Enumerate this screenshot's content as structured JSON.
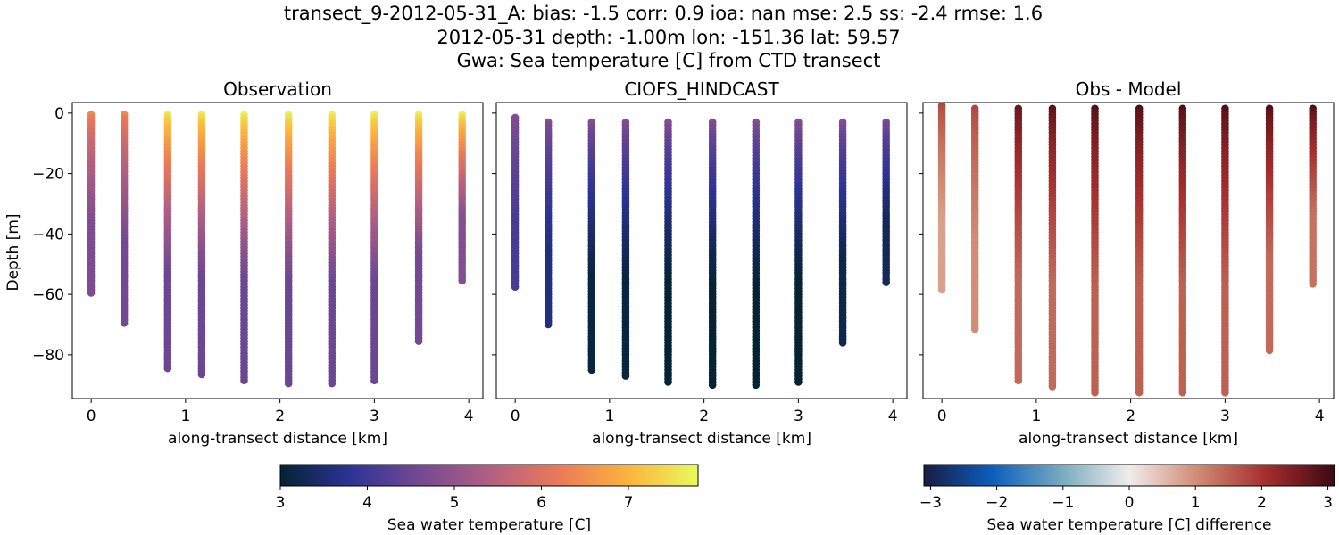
{
  "figure": {
    "title_lines": [
      "transect_9-2012-05-31_A: bias: -1.5  corr: 0.9  ioa: nan  mse: 2.5  ss: -2.4  rmse: 1.6",
      "2012-05-31 depth: -1.00m lon: -151.36 lat: 59.57",
      "Gwa: Sea temperature [C] from CTD transect"
    ]
  },
  "chart_data": [
    {
      "type": "scatter",
      "title": "Observation",
      "xlabel": "along-transect distance [km]",
      "ylabel": "Depth [m]",
      "xlim": [
        -0.2,
        4.15
      ],
      "ylim": [
        -94.5,
        3.5
      ],
      "xticks": [
        0,
        1,
        2,
        3,
        4
      ],
      "yticks": [
        0,
        -20,
        -40,
        -60,
        -80
      ],
      "colormap": "thermal",
      "color_range": [
        3,
        7.8
      ],
      "stations": [
        {
          "x": 0.0,
          "top": -0.5,
          "bottom": -60,
          "surface_value": 6.4,
          "deep_value": 4.7
        },
        {
          "x": 0.35,
          "top": -0.5,
          "bottom": -70,
          "surface_value": 6.4,
          "deep_value": 4.6
        },
        {
          "x": 0.81,
          "top": -0.5,
          "bottom": -85,
          "surface_value": 7.6,
          "deep_value": 4.5
        },
        {
          "x": 1.17,
          "top": -0.5,
          "bottom": -87,
          "surface_value": 7.6,
          "deep_value": 4.5
        },
        {
          "x": 1.62,
          "top": -0.5,
          "bottom": -89,
          "surface_value": 7.7,
          "deep_value": 4.5
        },
        {
          "x": 2.09,
          "top": -0.5,
          "bottom": -90,
          "surface_value": 7.7,
          "deep_value": 4.5
        },
        {
          "x": 2.55,
          "top": -0.5,
          "bottom": -90,
          "surface_value": 7.7,
          "deep_value": 4.5
        },
        {
          "x": 3.0,
          "top": -0.5,
          "bottom": -89,
          "surface_value": 7.7,
          "deep_value": 4.5
        },
        {
          "x": 3.47,
          "top": -0.5,
          "bottom": -76,
          "surface_value": 7.7,
          "deep_value": 4.6
        },
        {
          "x": 3.93,
          "top": -0.5,
          "bottom": -56,
          "surface_value": 7.7,
          "deep_value": 4.8
        }
      ]
    },
    {
      "type": "scatter",
      "title": "CIOFS_HINDCAST",
      "xlabel": "along-transect distance [km]",
      "ylabel": "",
      "xlim": [
        -0.2,
        4.15
      ],
      "ylim": [
        -94.5,
        3.5
      ],
      "xticks": [
        0,
        1,
        2,
        3,
        4
      ],
      "yticks": [
        0,
        -20,
        -40,
        -60,
        -80
      ],
      "colormap": "thermal",
      "color_range": [
        3,
        7.8
      ],
      "stations": [
        {
          "x": 0.0,
          "top": -1.5,
          "bottom": -58,
          "surface_value": 4.8,
          "deep_value": 4.1
        },
        {
          "x": 0.35,
          "top": -3,
          "bottom": -70,
          "surface_value": 4.8,
          "deep_value": 3.6
        },
        {
          "x": 0.81,
          "top": -3,
          "bottom": -85,
          "surface_value": 4.8,
          "deep_value": 3.1
        },
        {
          "x": 1.17,
          "top": -3,
          "bottom": -87,
          "surface_value": 4.8,
          "deep_value": 3.1
        },
        {
          "x": 1.62,
          "top": -3,
          "bottom": -89,
          "surface_value": 4.8,
          "deep_value": 3.0
        },
        {
          "x": 2.09,
          "top": -3,
          "bottom": -90,
          "surface_value": 4.8,
          "deep_value": 3.0
        },
        {
          "x": 2.55,
          "top": -3,
          "bottom": -90,
          "surface_value": 4.8,
          "deep_value": 3.0
        },
        {
          "x": 3.0,
          "top": -3,
          "bottom": -89,
          "surface_value": 4.8,
          "deep_value": 3.0
        },
        {
          "x": 3.47,
          "top": -3,
          "bottom": -76,
          "surface_value": 4.8,
          "deep_value": 3.2
        },
        {
          "x": 3.93,
          "top": -3,
          "bottom": -56,
          "surface_value": 4.7,
          "deep_value": 3.3
        }
      ]
    },
    {
      "type": "scatter",
      "title": "Obs - Model",
      "xlabel": "along-transect distance [km]",
      "ylabel": "",
      "xlim": [
        -0.2,
        4.15
      ],
      "ylim": [
        -94.5,
        3.5
      ],
      "xticks": [
        0,
        1,
        2,
        3,
        4
      ],
      "yticks": [
        0,
        -20,
        -40,
        -60,
        -80
      ],
      "colormap": "balance",
      "color_range": [
        -3.1,
        3.1
      ],
      "stations": [
        {
          "x": 0.0,
          "top": 2.5,
          "bottom": -59,
          "surface_value": 1.8,
          "deep_value": 0.8
        },
        {
          "x": 0.35,
          "top": 1.5,
          "bottom": -72,
          "surface_value": 1.8,
          "deep_value": 1.0
        },
        {
          "x": 0.81,
          "top": 1.5,
          "bottom": -89,
          "surface_value": 2.7,
          "deep_value": 1.4
        },
        {
          "x": 1.17,
          "top": 1.5,
          "bottom": -91,
          "surface_value": 2.8,
          "deep_value": 1.4
        },
        {
          "x": 1.62,
          "top": 1.5,
          "bottom": -93,
          "surface_value": 2.9,
          "deep_value": 1.5
        },
        {
          "x": 2.09,
          "top": 1.5,
          "bottom": -93,
          "surface_value": 2.9,
          "deep_value": 1.5
        },
        {
          "x": 2.55,
          "top": 1.5,
          "bottom": -93,
          "surface_value": 2.9,
          "deep_value": 1.5
        },
        {
          "x": 3.0,
          "top": 1.5,
          "bottom": -93,
          "surface_value": 2.9,
          "deep_value": 1.5
        },
        {
          "x": 3.47,
          "top": 1.5,
          "bottom": -79,
          "surface_value": 2.9,
          "deep_value": 1.4
        },
        {
          "x": 3.93,
          "top": 1.5,
          "bottom": -57,
          "surface_value": 2.9,
          "deep_value": 1.3
        }
      ]
    }
  ],
  "colorbars": [
    {
      "label": "Sea water temperature [C]",
      "colormap": "thermal",
      "range": [
        3,
        7.8
      ],
      "ticks": [
        3,
        4,
        5,
        6,
        7
      ]
    },
    {
      "label": "Sea water temperature [C] difference",
      "colormap": "balance",
      "range": [
        -3.1,
        3.1
      ],
      "ticks": [
        -3,
        -2,
        -1,
        0,
        1,
        2,
        3
      ]
    }
  ],
  "colormaps": {
    "thermal": [
      "#042333",
      "#2c3395",
      "#744992",
      "#b15f82",
      "#eb7958",
      "#fbb43d",
      "#e8fa5b"
    ],
    "balance": [
      "#181c43",
      "#0c5ebe",
      "#75aabe",
      "#f1eceb",
      "#d08b73",
      "#a52d2d",
      "#3c0912"
    ]
  }
}
